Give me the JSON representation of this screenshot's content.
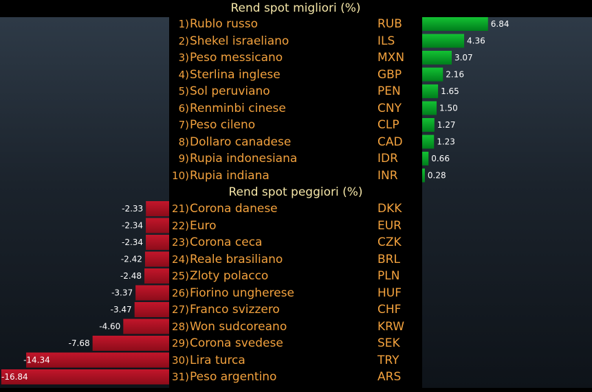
{
  "colors": {
    "positive": "#00a326",
    "negative": "#b01225",
    "label": "#f3a23e",
    "title": "#f5e6a8"
  },
  "chart_data": [
    {
      "type": "bar",
      "title": "Rend spot migliori (%)",
      "ranks": [
        "1)",
        "2)",
        "3)",
        "4)",
        "5)",
        "6)",
        "7)",
        "8)",
        "9)",
        "10)"
      ],
      "categories": [
        "Rublo russo",
        "Shekel israeliano",
        "Peso messicano",
        "Sterlina inglese",
        "Sol peruviano",
        "Renminbi cinese",
        "Peso cileno",
        "Dollaro canadese",
        "Rupia indonesiana",
        "Rupia indiana"
      ],
      "codes": [
        "RUB",
        "ILS",
        "MXN",
        "GBP",
        "PEN",
        "CNY",
        "CLP",
        "CAD",
        "IDR",
        "INR"
      ],
      "values": [
        6.84,
        4.36,
        3.07,
        2.16,
        1.65,
        1.5,
        1.27,
        1.23,
        0.66,
        0.28
      ],
      "labels": [
        "6.84",
        "4.36",
        "3.07",
        "2.16",
        "1.65",
        "1.50",
        "1.27",
        "1.23",
        "0.66",
        "0.28"
      ]
    },
    {
      "type": "bar",
      "title": "Rend spot peggiori (%)",
      "ranks": [
        "21)",
        "22)",
        "23)",
        "24)",
        "25)",
        "26)",
        "27)",
        "28)",
        "29)",
        "30)",
        "31)"
      ],
      "categories": [
        "Corona danese",
        "Euro",
        "Corona ceca",
        "Reale brasiliano",
        "Zloty polacco",
        "Fiorino ungherese",
        "Franco svizzero",
        "Won sudcoreano",
        "Corona svedese",
        "Lira turca",
        "Peso argentino"
      ],
      "codes": [
        "DKK",
        "EUR",
        "CZK",
        "BRL",
        "PLN",
        "HUF",
        "CHF",
        "KRW",
        "SEK",
        "TRY",
        "ARS"
      ],
      "values": [
        -2.33,
        -2.34,
        -2.34,
        -2.42,
        -2.48,
        -3.37,
        -3.47,
        -4.6,
        -7.68,
        -14.34,
        -16.84
      ],
      "labels": [
        "-2.33",
        "-2.34",
        "-2.34",
        "-2.42",
        "-2.48",
        "-3.37",
        "-3.47",
        "-4.60",
        "-7.68",
        "-14.34",
        "-16.84"
      ]
    }
  ]
}
